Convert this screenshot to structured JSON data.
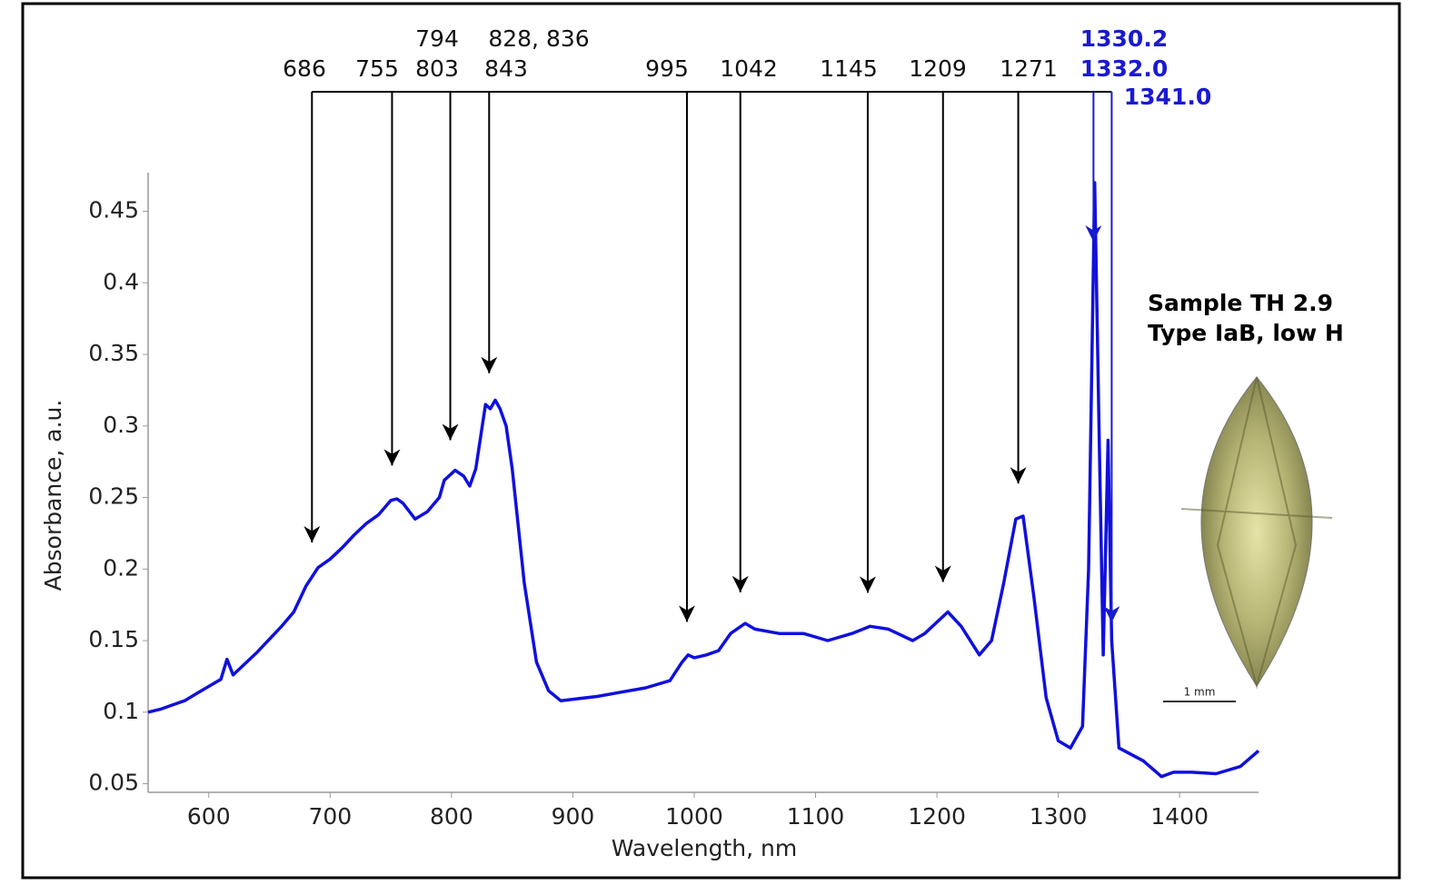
{
  "chart_data": {
    "type": "line",
    "x_label": "Wavelength, nm",
    "y_label": "Absorbance, a.u.",
    "xlim": [
      550,
      1465
    ],
    "ylim": [
      0.044,
      0.477
    ],
    "xticks": [
      600,
      700,
      800,
      900,
      1000,
      1100,
      1200,
      1300,
      1400
    ],
    "yticks": [
      0.05,
      0.1,
      0.15,
      0.2,
      0.25,
      0.3,
      0.35,
      0.4,
      0.45
    ],
    "x": [
      550,
      560,
      570,
      580,
      590,
      600,
      610,
      615,
      620,
      625,
      640,
      660,
      670,
      680,
      690,
      700,
      710,
      720,
      730,
      740,
      750,
      755,
      760,
      770,
      780,
      790,
      794,
      803,
      810,
      815,
      820,
      828,
      832,
      836,
      840,
      845,
      850,
      860,
      870,
      880,
      890,
      900,
      920,
      940,
      960,
      980,
      990,
      995,
      1000,
      1010,
      1020,
      1030,
      1042,
      1050,
      1070,
      1090,
      1110,
      1130,
      1145,
      1160,
      1180,
      1190,
      1209,
      1220,
      1235,
      1245,
      1255,
      1265,
      1271,
      1280,
      1290,
      1300,
      1310,
      1320,
      1325,
      1330,
      1334,
      1337,
      1341,
      1344,
      1350,
      1370,
      1385,
      1395,
      1410,
      1430,
      1450,
      1465
    ],
    "series": [
      {
        "name": "Sample TH 2.9",
        "color": "#1010dd",
        "values": [
          0.1,
          0.102,
          0.105,
          0.108,
          0.113,
          0.118,
          0.123,
          0.137,
          0.126,
          0.13,
          0.142,
          0.16,
          0.17,
          0.188,
          0.201,
          0.207,
          0.215,
          0.224,
          0.232,
          0.238,
          0.248,
          0.249,
          0.246,
          0.235,
          0.24,
          0.25,
          0.262,
          0.269,
          0.265,
          0.258,
          0.27,
          0.315,
          0.312,
          0.318,
          0.312,
          0.3,
          0.27,
          0.19,
          0.135,
          0.115,
          0.108,
          0.109,
          0.111,
          0.114,
          0.117,
          0.122,
          0.135,
          0.14,
          0.138,
          0.14,
          0.143,
          0.155,
          0.162,
          0.158,
          0.155,
          0.155,
          0.15,
          0.155,
          0.16,
          0.158,
          0.15,
          0.155,
          0.17,
          0.16,
          0.14,
          0.15,
          0.19,
          0.235,
          0.237,
          0.18,
          0.11,
          0.08,
          0.075,
          0.09,
          0.2,
          0.47,
          0.28,
          0.14,
          0.29,
          0.15,
          0.075,
          0.066,
          0.055,
          0.058,
          0.058,
          0.057,
          0.062,
          0.073
        ]
      }
    ],
    "annotations": [
      {
        "lines": [
          "686"
        ],
        "x": 685,
        "color": "#000000"
      },
      {
        "lines": [
          "755"
        ],
        "x": 751,
        "color": "#000000"
      },
      {
        "lines": [
          "794",
          "803"
        ],
        "x": 799,
        "color": "#000000"
      },
      {
        "lines": [
          "828, 836",
          "843"
        ],
        "x": 831,
        "color": "#000000"
      },
      {
        "lines": [
          "995"
        ],
        "x": 994,
        "color": "#000000"
      },
      {
        "lines": [
          "1042"
        ],
        "x": 1038,
        "color": "#000000"
      },
      {
        "lines": [
          "1145"
        ],
        "x": 1143,
        "color": "#000000"
      },
      {
        "lines": [
          "1209"
        ],
        "x": 1205,
        "color": "#000000"
      },
      {
        "lines": [
          "1271"
        ],
        "x": 1267,
        "color": "#000000"
      },
      {
        "lines": [
          "1330.2",
          "1332.0"
        ],
        "x": 1329,
        "color": "#1a1ad0"
      },
      {
        "lines": [
          "1341.0"
        ],
        "x": 1344,
        "color": "#1a1ad0"
      }
    ],
    "sample_lines": [
      "Sample TH 2.9",
      "Type IaB, low H"
    ],
    "scale_label": "1 mm"
  }
}
